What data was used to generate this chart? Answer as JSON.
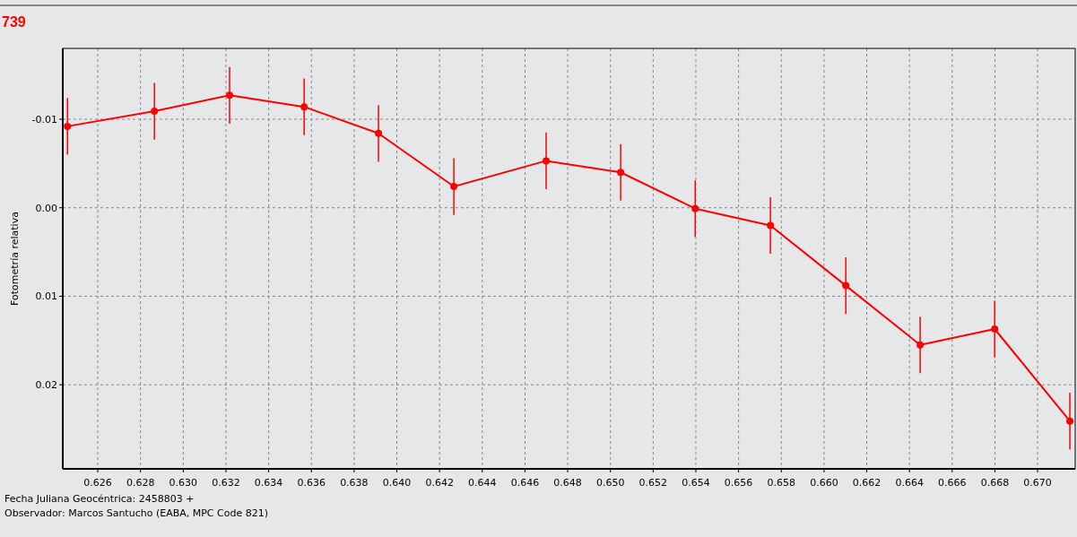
{
  "chart_data": {
    "type": "line",
    "title": "739",
    "ylabel": "Fotometría relativa",
    "xlabel": "Fecha Juliana Geocéntrica: 2458803 +",
    "annotations": [
      "Observador: Marcos Santucho (EABA, MPC Code 821)"
    ],
    "x": [
      0.62458,
      0.62865,
      0.63217,
      0.63566,
      0.63914,
      0.64267,
      0.64699,
      0.65048,
      0.65397,
      0.65749,
      0.66102,
      0.6645,
      0.66799,
      0.67151
    ],
    "series": [
      {
        "color": "#ff0000",
        "values": [
          -0.0092,
          -0.0109,
          -0.0127,
          -0.0114,
          -0.0084,
          -0.0024,
          -0.0053,
          -0.004,
          0.0001,
          0.002,
          0.0088,
          0.0155,
          0.0137,
          0.0241
        ],
        "errors": [
          0.0032,
          0.0032,
          0.0032,
          0.0032,
          0.0032,
          0.0032,
          0.0032,
          0.0032,
          0.0032,
          0.0032,
          0.0032,
          0.0032,
          0.0032,
          0.0032
        ]
      }
    ],
    "xlim": [
      0.62436,
      0.67176
    ],
    "ylim": [
      0.0295,
      -0.018
    ],
    "xticks": [
      {
        "value": 0.626,
        "label": "0.626"
      },
      {
        "value": 0.628,
        "label": "0.628"
      },
      {
        "value": 0.63,
        "label": "0.630"
      },
      {
        "value": 0.632,
        "label": "0.632"
      },
      {
        "value": 0.634,
        "label": "0.634"
      },
      {
        "value": 0.636,
        "label": "0.636"
      },
      {
        "value": 0.638,
        "label": "0.638"
      },
      {
        "value": 0.64,
        "label": "0.640"
      },
      {
        "value": 0.642,
        "label": "0.642"
      },
      {
        "value": 0.644,
        "label": "0.644"
      },
      {
        "value": 0.646,
        "label": "0.646"
      },
      {
        "value": 0.648,
        "label": "0.648"
      },
      {
        "value": 0.65,
        "label": "0.650"
      },
      {
        "value": 0.652,
        "label": "0.652"
      },
      {
        "value": 0.654,
        "label": "0.654"
      },
      {
        "value": 0.656,
        "label": "0.656"
      },
      {
        "value": 0.658,
        "label": "0.658"
      },
      {
        "value": 0.66,
        "label": "0.660"
      },
      {
        "value": 0.662,
        "label": "0.662"
      },
      {
        "value": 0.664,
        "label": "0.664"
      },
      {
        "value": 0.666,
        "label": "0.666"
      },
      {
        "value": 0.668,
        "label": "0.668"
      },
      {
        "value": 0.67,
        "label": "0.670"
      }
    ],
    "yticks": [
      {
        "value": -0.01,
        "label": "-0.01"
      },
      {
        "value": 0,
        "label": "0.00"
      },
      {
        "value": 0.01,
        "label": "0.01"
      },
      {
        "value": 0.02,
        "label": "0.02"
      }
    ],
    "grid": true,
    "marker": "circle",
    "line_style": "solid"
  }
}
